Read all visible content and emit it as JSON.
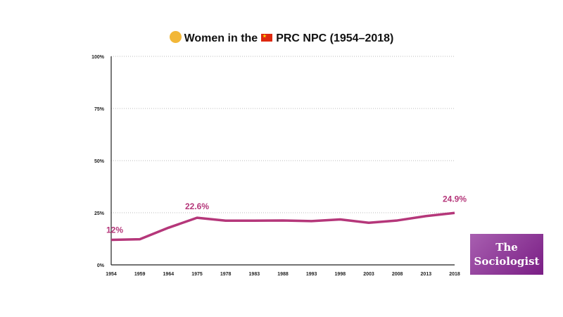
{
  "chart_data": {
    "type": "line",
    "title": "Women in the PRC NPC (1954–2018)",
    "title_parts": {
      "before_flag": "Women in the",
      "after_flag": "PRC NPC (1954–2018)"
    },
    "title_icons": [
      "woman-emoji-icon",
      "china-flag-icon"
    ],
    "categories": [
      "1954",
      "1959",
      "1964",
      "1975",
      "1978",
      "1983",
      "1988",
      "1993",
      "1998",
      "2003",
      "2008",
      "2013",
      "2018"
    ],
    "series": [
      {
        "values": [
          12.0,
          12.3,
          17.8,
          22.6,
          21.2,
          21.2,
          21.3,
          21.0,
          21.8,
          20.2,
          21.3,
          23.4,
          24.9
        ]
      }
    ],
    "ylim": [
      0,
      100
    ],
    "yticks": [
      "0%",
      "25%",
      "50%",
      "75%",
      "100%"
    ],
    "ytick_values": [
      0,
      25,
      50,
      75,
      100
    ],
    "grid": "horizontal dotted",
    "data_labels": [
      {
        "index": 0,
        "text": "12%"
      },
      {
        "index": 3,
        "text": "22.6%"
      },
      {
        "index": 12,
        "text": "24.9%"
      }
    ],
    "line_color": "#b5377a"
  },
  "logo": {
    "line1": "The",
    "line2": "Sociologist"
  }
}
